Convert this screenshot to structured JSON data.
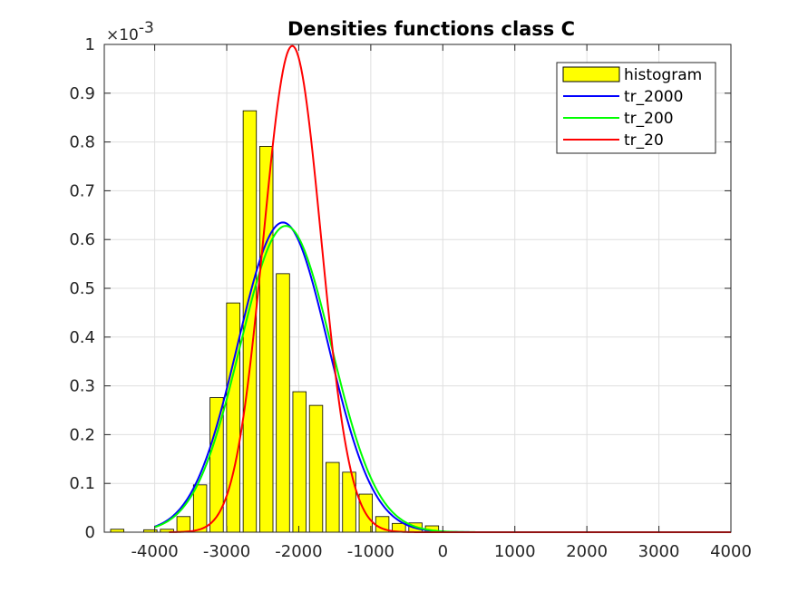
{
  "chart_data": {
    "type": "bar",
    "title": "Densities functions class C",
    "y_exponent_label": "×10",
    "y_exponent_power": "-3",
    "xlim": [
      -4700,
      4000
    ],
    "ylim": [
      0,
      1
    ],
    "x_ticks": [
      -4000,
      -3000,
      -2000,
      -1000,
      0,
      1000,
      2000,
      3000,
      4000
    ],
    "x_tick_labels": [
      "-4000",
      "-3000",
      "-2000",
      "-1000",
      "0",
      "1000",
      "2000",
      "3000",
      "4000"
    ],
    "y_ticks": [
      0,
      0.1,
      0.2,
      0.3,
      0.4,
      0.5,
      0.6,
      0.7,
      0.8,
      0.9,
      1
    ],
    "y_tick_labels": [
      "0",
      "0.1",
      "0.2",
      "0.3",
      "0.4",
      "0.5",
      "0.6",
      "0.7",
      "0.8",
      "0.9",
      "1"
    ],
    "grid": true,
    "legend_position": "top-right",
    "histogram": {
      "name": "histogram",
      "color": "#ffff00",
      "bin_width": 230,
      "centers": [
        -4520,
        -4060,
        -3830,
        -3600,
        -3370,
        -3140,
        -2910,
        -2680,
        -2450,
        -2220,
        -1990,
        -1760,
        -1530,
        -1300,
        -1070,
        -840,
        -610,
        -380,
        -150,
        80,
        310
      ],
      "values": [
        0.006,
        0.005,
        0.006,
        0.032,
        0.097,
        0.276,
        0.47,
        0.864,
        0.791,
        0.53,
        0.288,
        0.26,
        0.143,
        0.123,
        0.078,
        0.032,
        0.018,
        0.019,
        0.013,
        0,
        0
      ]
    },
    "series": [
      {
        "name": "tr_2000",
        "color": "#0000ff",
        "mean": -2220,
        "std": 628,
        "peak": 0.635,
        "x_start": -4000,
        "x_end": 4000
      },
      {
        "name": "tr_200",
        "color": "#00ff00",
        "mean": -2180,
        "std": 635,
        "peak": 0.628,
        "x_start": -4000,
        "x_end": 4000
      },
      {
        "name": "tr_20",
        "color": "#ff0000",
        "mean": -2090,
        "std": 400,
        "peak": 0.997,
        "x_start": -3800,
        "x_end": 4000
      }
    ]
  }
}
